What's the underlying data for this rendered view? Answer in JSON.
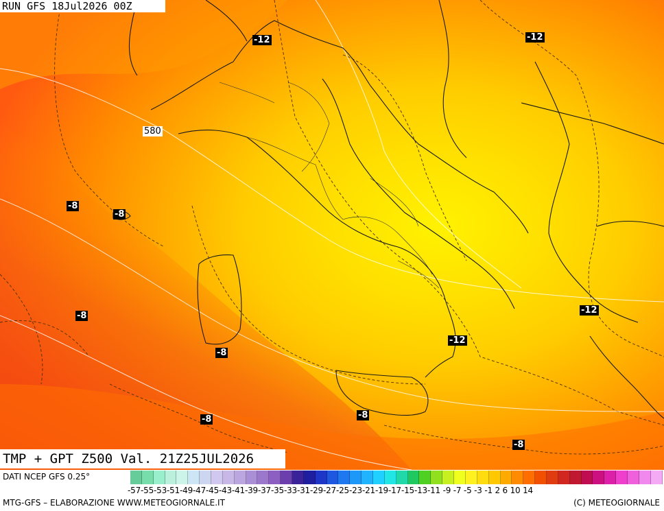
{
  "header": {
    "run": "RUN GFS 18Jul2026 00Z",
    "valid": "TMP + GPT Z500 Val. 21Z25JUL2026"
  },
  "labels": {
    "temp": [
      "-12",
      "-12",
      "-8",
      "-8",
      "-8",
      "-8",
      "-8",
      "-8",
      "-12",
      "-12",
      "-8"
    ],
    "gpt": [
      "580"
    ]
  },
  "legend": {
    "source": "DATI NCEP GFS 0.25°",
    "ticks": "-57-55-53-51-49-47-45-43-41-39-37-35-33-31-29-27-25-23-21-19-17-15-13-11 -9  -7  -5  -3  -1  2  6  10  14",
    "colors": [
      "#66cc99",
      "#77ddaa",
      "#99eecc",
      "#bbf0dd",
      "#ccf4e8",
      "#cce6f6",
      "#ccd6f0",
      "#d0c8ee",
      "#c8b8e8",
      "#bba6e0",
      "#aa8fd6",
      "#9c78cc",
      "#8e5fc2",
      "#6b3fae",
      "#3a2398",
      "#1e1ea0",
      "#1e36c8",
      "#1e58e0",
      "#1e78f0",
      "#1e98f8",
      "#20b4ff",
      "#20d0ff",
      "#20e6e6",
      "#20d8a8",
      "#20c860",
      "#50d020",
      "#90e020",
      "#c8f020",
      "#f0ff20",
      "#fff020",
      "#ffdc10",
      "#ffc800",
      "#ffaa00",
      "#ff8c00",
      "#ff6e00",
      "#f05000",
      "#e03c10",
      "#d02820",
      "#c01830",
      "#c00c50",
      "#cc1080",
      "#dd20aa",
      "#ee40cc",
      "#f060dd",
      "#f088ee",
      "#f4aaf4"
    ],
    "footer_left": "MTG-GFS – ELABORAZIONE WWW.METEOGIORNALE.IT",
    "footer_right": "(C) METEOGIORNALE"
  }
}
